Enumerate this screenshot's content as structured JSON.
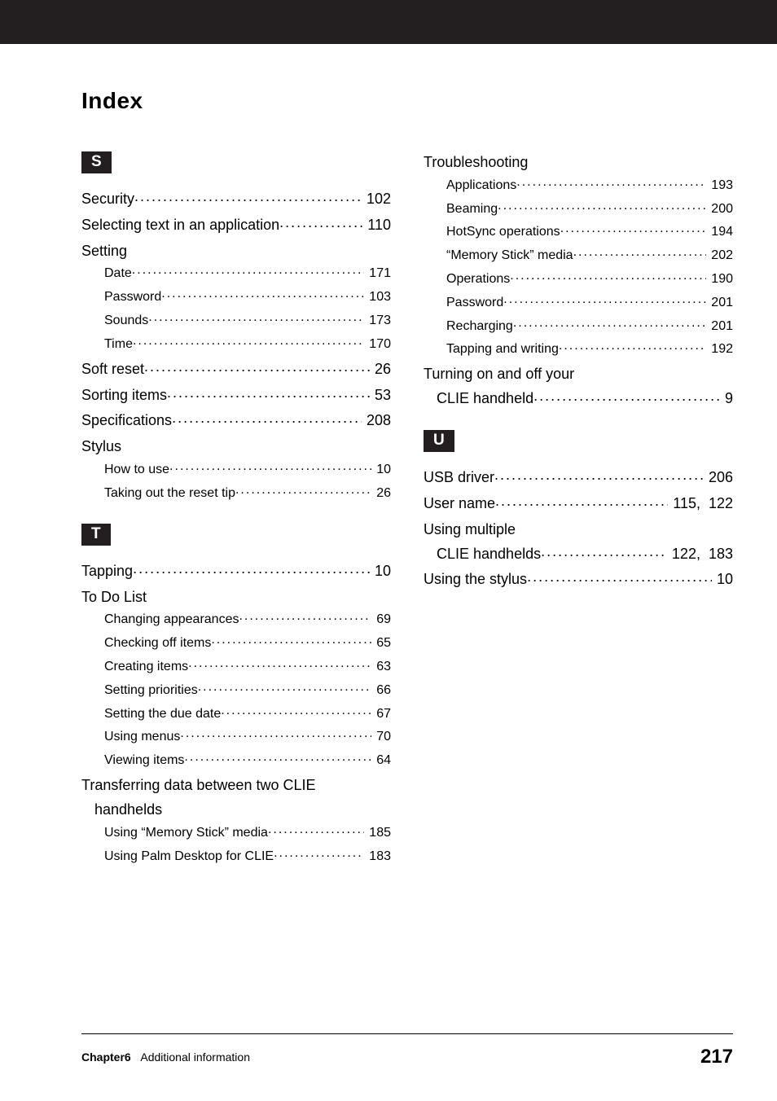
{
  "heading": "Index",
  "footer": {
    "chapter": "Chapter6",
    "section": "Additional information",
    "page": "217"
  },
  "left": {
    "sections": [
      {
        "letter": "S",
        "entries": [
          {
            "type": "top",
            "label": "Security",
            "page": "102"
          },
          {
            "type": "top",
            "label": "Selecting text in an application",
            "page": "110"
          },
          {
            "type": "head",
            "label": "Setting"
          },
          {
            "type": "sub",
            "label": "Date",
            "page": "171"
          },
          {
            "type": "sub",
            "label": "Password",
            "page": "103"
          },
          {
            "type": "sub",
            "label": "Sounds",
            "page": "173"
          },
          {
            "type": "sub",
            "label": "Time",
            "page": "170"
          },
          {
            "type": "top",
            "label": "Soft reset",
            "page": "26"
          },
          {
            "type": "top",
            "label": "Sorting items",
            "page": "53"
          },
          {
            "type": "top",
            "label": "Specifications",
            "page": "208"
          },
          {
            "type": "head",
            "label": "Stylus"
          },
          {
            "type": "sub",
            "label": "How to use",
            "page": "10"
          },
          {
            "type": "sub",
            "label": "Taking out the reset tip",
            "page": "26"
          }
        ]
      },
      {
        "letter": "T",
        "entries": [
          {
            "type": "top",
            "label": "Tapping",
            "page": "10"
          },
          {
            "type": "head",
            "label": "To Do List"
          },
          {
            "type": "sub",
            "label": "Changing appearances",
            "page": "69"
          },
          {
            "type": "sub",
            "label": "Checking off items",
            "page": "65"
          },
          {
            "type": "sub",
            "label": "Creating items",
            "page": "63"
          },
          {
            "type": "sub",
            "label": "Setting priorities",
            "page": "66"
          },
          {
            "type": "sub",
            "label": "Setting the due date",
            "page": "67"
          },
          {
            "type": "sub",
            "label": "Using menus",
            "page": "70"
          },
          {
            "type": "sub",
            "label": "Viewing items",
            "page": "64"
          },
          {
            "type": "head",
            "label": "Transferring data between two CLIE"
          },
          {
            "type": "cont",
            "label": "handhelds"
          },
          {
            "type": "sub",
            "label": "Using “Memory Stick” media",
            "page": "185"
          },
          {
            "type": "sub",
            "label": "Using Palm Desktop for CLIE",
            "page": "183"
          }
        ]
      }
    ]
  },
  "right": {
    "sections": [
      {
        "letter": "",
        "entries": [
          {
            "type": "head",
            "label": "Troubleshooting"
          },
          {
            "type": "sub",
            "label": "Applications",
            "page": "193"
          },
          {
            "type": "sub",
            "label": "Beaming",
            "page": "200"
          },
          {
            "type": "sub",
            "label": "HotSync operations",
            "page": "194"
          },
          {
            "type": "sub",
            "label": "“Memory Stick” media",
            "page": "202"
          },
          {
            "type": "sub",
            "label": "Operations",
            "page": "190"
          },
          {
            "type": "sub",
            "label": "Password",
            "page": "201"
          },
          {
            "type": "sub",
            "label": "Recharging",
            "page": "201"
          },
          {
            "type": "sub",
            "label": "Tapping and writing",
            "page": "192"
          },
          {
            "type": "head",
            "label": "Turning on and off your"
          },
          {
            "type": "cont-row",
            "label": "CLIE handheld",
            "page": "9"
          }
        ]
      },
      {
        "letter": "U",
        "entries": [
          {
            "type": "top",
            "label": "USB driver",
            "page": "206"
          },
          {
            "type": "top",
            "label": "User name",
            "page": "115,  122"
          },
          {
            "type": "head",
            "label": "Using multiple"
          },
          {
            "type": "cont-row",
            "label": "CLIE handhelds",
            "page": "122,  183"
          },
          {
            "type": "top",
            "label": "Using the stylus",
            "page": "10"
          }
        ]
      }
    ]
  }
}
